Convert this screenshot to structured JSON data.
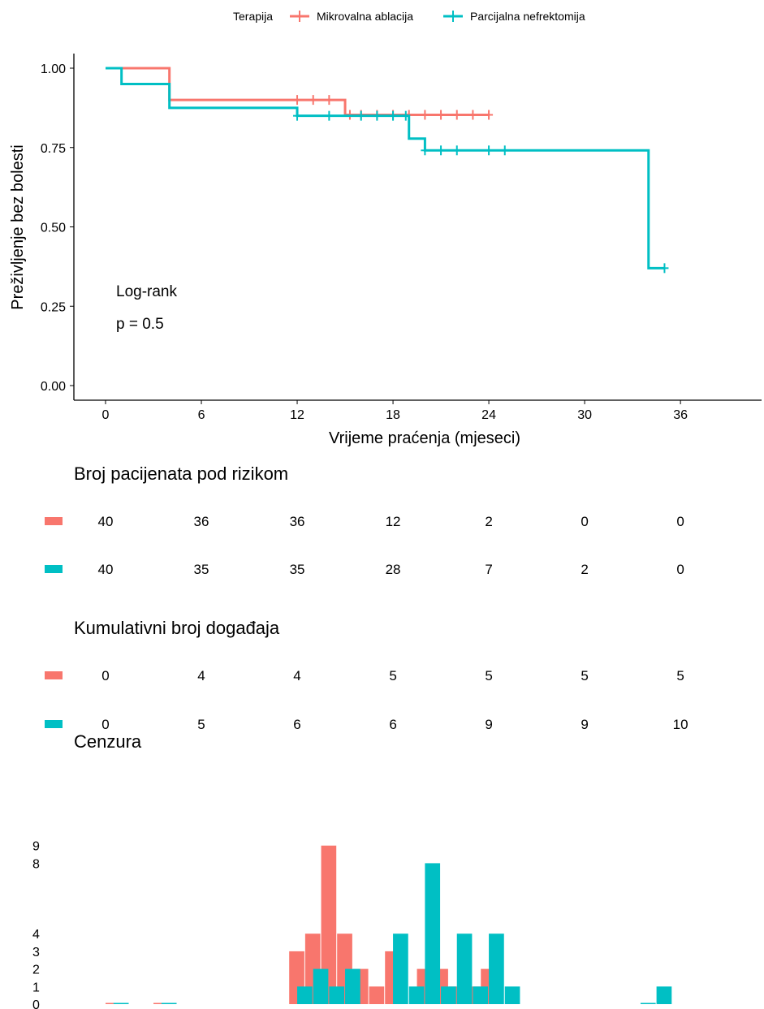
{
  "legend": {
    "title": "Terapija",
    "items": [
      {
        "name": "Mikrovalna ablacija",
        "color": "#F8766D"
      },
      {
        "name": "Parcijalna nefrektomija",
        "color": "#00BFC4"
      }
    ]
  },
  "chart_data": [
    {
      "type": "line",
      "chart": "kaplan-meier",
      "xlabel": "Vrijeme praćenja (mjeseci)",
      "ylabel": "Preživljenje bez bolesti",
      "x_ticks": [
        0,
        6,
        12,
        18,
        24,
        30,
        36
      ],
      "y_ticks": [
        0.0,
        0.25,
        0.5,
        0.75,
        1.0
      ],
      "y_tick_labels": [
        "0.00",
        "0.25",
        "0.50",
        "0.75",
        "1.00"
      ],
      "xlim": [
        -2,
        41
      ],
      "ylim": [
        0,
        1
      ],
      "annotation": {
        "line1": "Log-rank",
        "line2": "p = 0.5"
      },
      "series": [
        {
          "name": "Mikrovalna ablacija",
          "color": "#F8766D",
          "steps": [
            [
              0,
              1.0
            ],
            [
              4,
              0.9
            ],
            [
              15,
              0.853
            ],
            [
              24,
              0.853
            ]
          ],
          "censor_times": [
            12,
            13,
            14,
            15.3,
            16,
            17,
            18,
            19,
            20,
            21,
            22,
            23,
            24
          ]
        },
        {
          "name": "Parcijalna nefrektomija",
          "color": "#00BFC4",
          "steps": [
            [
              0,
              1.0
            ],
            [
              1,
              0.95
            ],
            [
              4,
              0.875
            ],
            [
              12,
              0.85
            ],
            [
              19,
              0.778
            ],
            [
              20,
              0.741
            ],
            [
              34,
              0.37
            ],
            [
              35,
              0.37
            ]
          ],
          "censor_times": [
            12,
            14,
            16,
            17,
            18,
            18.8,
            20,
            21,
            22,
            24,
            25,
            35
          ]
        }
      ]
    },
    {
      "type": "table",
      "title": "Broj pacijenata pod rizikom",
      "times": [
        0,
        6,
        12,
        18,
        24,
        30,
        36
      ],
      "rows": [
        {
          "series": "Mikrovalna ablacija",
          "values": [
            "40",
            "36",
            "36",
            "12",
            "2",
            "0",
            "0"
          ]
        },
        {
          "series": "Parcijalna nefrektomija",
          "values": [
            "40",
            "35",
            "35",
            "28",
            "7",
            "2",
            "0"
          ]
        }
      ]
    },
    {
      "type": "table",
      "title": "Kumulativni broj događaja",
      "times": [
        0,
        6,
        12,
        18,
        24,
        30,
        36
      ],
      "rows": [
        {
          "series": "Mikrovalna ablacija",
          "values": [
            "0",
            "4",
            "4",
            "5",
            "5",
            "5",
            "5"
          ]
        },
        {
          "series": "Parcijalna nefrektomija",
          "values": [
            "0",
            "5",
            "6",
            "6",
            "9",
            "9",
            "10"
          ]
        }
      ]
    },
    {
      "type": "bar",
      "title": "Cenzura",
      "y_tick_labels": [
        "0",
        "1",
        "2",
        "3",
        "4",
        "8",
        "9"
      ],
      "y_tick_values": [
        0,
        1,
        2,
        3,
        4,
        8,
        9
      ],
      "bar_width": 1,
      "series": [
        {
          "name": "Mikrovalna ablacija",
          "color": "#F8766D",
          "bars": [
            {
              "x": 12,
              "count": 3
            },
            {
              "x": 13,
              "count": 4
            },
            {
              "x": 14,
              "count": 9
            },
            {
              "x": 15,
              "count": 4
            },
            {
              "x": 16,
              "count": 2
            },
            {
              "x": 17,
              "count": 1
            },
            {
              "x": 18,
              "count": 3
            },
            {
              "x": 20,
              "count": 2
            },
            {
              "x": 21,
              "count": 2
            },
            {
              "x": 22,
              "count": 1
            },
            {
              "x": 23,
              "count": 1
            },
            {
              "x": 24,
              "count": 2
            }
          ],
          "zero_ticks": [
            0.5,
            3.5
          ]
        },
        {
          "name": "Parcijalna nefrektomija",
          "color": "#00BFC4",
          "bars": [
            {
              "x": 12.5,
              "count": 1
            },
            {
              "x": 13.5,
              "count": 2
            },
            {
              "x": 14.5,
              "count": 1
            },
            {
              "x": 15.5,
              "count": 2
            },
            {
              "x": 18.5,
              "count": 4
            },
            {
              "x": 19.5,
              "count": 1
            },
            {
              "x": 20.5,
              "count": 8
            },
            {
              "x": 21.5,
              "count": 1
            },
            {
              "x": 22.5,
              "count": 4
            },
            {
              "x": 23.5,
              "count": 1
            },
            {
              "x": 24.5,
              "count": 4
            },
            {
              "x": 25.5,
              "count": 1
            },
            {
              "x": 35,
              "count": 1
            }
          ],
          "zero_ticks": [
            1,
            4,
            34
          ]
        }
      ]
    }
  ]
}
